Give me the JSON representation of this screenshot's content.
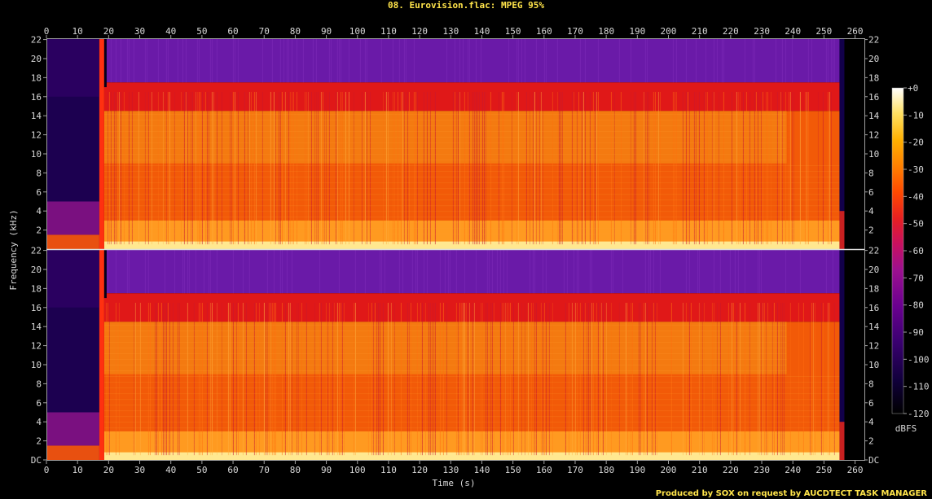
{
  "chart_data": {
    "type": "heatmap",
    "title": "08. Eurovision.flac: MPEG 95%",
    "xlabel": "Time (s)",
    "ylabel": "Frequency (kHz)",
    "xlim": [
      0,
      263
    ],
    "ylim": [
      0,
      22.05
    ],
    "x_ticks": [
      "0",
      "10",
      "20",
      "30",
      "40",
      "50",
      "60",
      "70",
      "80",
      "90",
      "100",
      "110",
      "120",
      "130",
      "140",
      "150",
      "160",
      "170",
      "180",
      "190",
      "200",
      "210",
      "220",
      "230",
      "240",
      "250",
      "260"
    ],
    "y_ticks": [
      "DC",
      "2",
      "4",
      "6",
      "8",
      "10",
      "12",
      "14",
      "16",
      "18",
      "20",
      "22"
    ],
    "y_ticks_upper": [
      "2",
      "4",
      "6",
      "8",
      "10",
      "12",
      "14",
      "16",
      "18",
      "20",
      "22"
    ],
    "channels": 2,
    "colorbar": {
      "label": "dBFS",
      "ticks": [
        "+0",
        "-10",
        "-20",
        "-30",
        "-40",
        "-50",
        "-60",
        "-70",
        "-80",
        "-90",
        "-100",
        "-110",
        "-120"
      ],
      "range": [
        -120,
        0
      ]
    },
    "features": {
      "intro_quiet_end_s": 17,
      "lowpass_khz": 17.5,
      "shelf_khz": 14.5,
      "shelf_end_s": 238,
      "music_end_s": 255
    }
  },
  "credit": "Produced by SOX on request by AUCDTECT TASK MANAGER",
  "colors": {
    "palette": [
      "#000000",
      "#10003a",
      "#3a0070",
      "#6a0090",
      "#9c1090",
      "#c81060",
      "#e82020",
      "#ff4a00",
      "#ff8000",
      "#ffb000",
      "#ffe060",
      "#ffffc8",
      "#ffffff"
    ]
  }
}
